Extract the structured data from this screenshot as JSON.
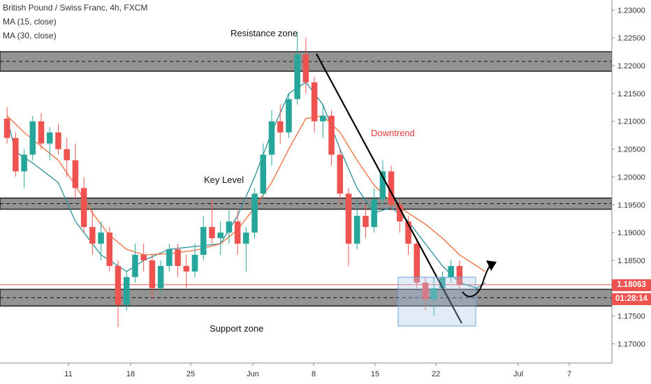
{
  "legend": {
    "title": "British Pound / Swiss Franc, 4h, FXCM",
    "ma15": "MA (15, close)",
    "ma30": "MA (30, close)"
  },
  "annotations": {
    "resistance": "Resistance zone",
    "key_level": "Key Level",
    "support": "Support zone",
    "downtrend": "Downtrend"
  },
  "price_tags": {
    "last": "1.18063",
    "timer": "01:28:14"
  },
  "colors": {
    "up": "#26a69a",
    "down": "#ef5350",
    "ma15": "#2a8f9a",
    "ma30": "#f06a3a",
    "zone": "#808080",
    "box": "#a9c8ea",
    "last_price": "#ef5350",
    "timer": "#ef5350"
  },
  "chart_data": {
    "type": "candlestick",
    "title": "British Pound / Swiss Franc, 4h, FXCM",
    "x_tick_labels": [
      "11",
      "18",
      "25",
      "Jun",
      "8",
      "15",
      "22",
      "Jul",
      "7"
    ],
    "y_tick_labels": [
      "1.23000",
      "1.22500",
      "1.22000",
      "1.21500",
      "1.21000",
      "1.20500",
      "1.20000",
      "1.19500",
      "1.19000",
      "1.18500",
      "1.18000",
      "1.17500",
      "1.17000"
    ],
    "ylim": [
      1.1668,
      1.2318
    ],
    "grid": false,
    "series": [
      {
        "name": "MA (15, close)",
        "approx_path": [
          [
            0,
            1.2105
          ],
          [
            1,
            1.2045
          ],
          [
            3,
            1.2025
          ],
          [
            6,
            1.199
          ],
          [
            8,
            1.192
          ],
          [
            11,
            1.186
          ],
          [
            14,
            1.183
          ],
          [
            16,
            1.185
          ],
          [
            19,
            1.187
          ],
          [
            22,
            1.1875
          ],
          [
            25,
            1.188
          ],
          [
            27,
            1.193
          ],
          [
            29,
            1.2
          ],
          [
            31,
            1.208
          ],
          [
            33,
            1.215
          ],
          [
            35,
            1.217
          ],
          [
            37,
            1.213
          ],
          [
            39,
            1.205
          ],
          [
            41,
            1.198
          ],
          [
            43,
            1.1935
          ],
          [
            45,
            1.1945
          ],
          [
            47,
            1.192
          ],
          [
            49,
            1.188
          ],
          [
            51,
            1.184
          ],
          [
            53,
            1.181
          ],
          [
            55,
            1.18
          ],
          [
            56,
            1.181
          ]
        ]
      },
      {
        "name": "MA (30, close)",
        "approx_path": [
          [
            0,
            1.211
          ],
          [
            2,
            1.208
          ],
          [
            4,
            1.2055
          ],
          [
            6,
            1.203
          ],
          [
            8,
            1.1985
          ],
          [
            10,
            1.1935
          ],
          [
            12,
            1.1895
          ],
          [
            14,
            1.187
          ],
          [
            16,
            1.186
          ],
          [
            19,
            1.1862
          ],
          [
            22,
            1.1868
          ],
          [
            25,
            1.188
          ],
          [
            27,
            1.1905
          ],
          [
            29,
            1.1945
          ],
          [
            31,
            1.199
          ],
          [
            33,
            1.205
          ],
          [
            35,
            1.2105
          ],
          [
            37,
            1.211
          ],
          [
            39,
            1.208
          ],
          [
            41,
            1.203
          ],
          [
            43,
            1.1985
          ],
          [
            45,
            1.1955
          ],
          [
            47,
            1.1935
          ],
          [
            49,
            1.1915
          ],
          [
            51,
            1.189
          ],
          [
            53,
            1.186
          ],
          [
            55,
            1.184
          ],
          [
            56,
            1.183
          ]
        ]
      }
    ],
    "candles": [
      [
        1.2105,
        1.2125,
        1.206,
        1.207
      ],
      [
        1.207,
        1.208,
        1.2,
        1.201
      ],
      [
        1.201,
        1.205,
        1.198,
        1.204
      ],
      [
        1.204,
        1.211,
        1.203,
        1.21
      ],
      [
        1.21,
        1.2115,
        1.205,
        1.206
      ],
      [
        1.206,
        1.209,
        1.203,
        1.208
      ],
      [
        1.208,
        1.2095,
        1.204,
        1.205
      ],
      [
        1.205,
        1.207,
        1.2,
        1.203
      ],
      [
        1.203,
        1.206,
        1.196,
        1.198
      ],
      [
        1.198,
        1.2,
        1.19,
        1.191
      ],
      [
        1.191,
        1.194,
        1.186,
        1.188
      ],
      [
        1.188,
        1.192,
        1.185,
        1.19
      ],
      [
        1.19,
        1.191,
        1.183,
        1.184
      ],
      [
        1.184,
        1.185,
        1.173,
        1.177
      ],
      [
        1.177,
        1.183,
        1.176,
        1.182
      ],
      [
        1.182,
        1.188,
        1.181,
        1.186
      ],
      [
        1.186,
        1.188,
        1.183,
        1.185
      ],
      [
        1.185,
        1.186,
        1.178,
        1.18
      ],
      [
        1.18,
        1.185,
        1.179,
        1.184
      ],
      [
        1.184,
        1.188,
        1.183,
        1.187
      ],
      [
        1.187,
        1.188,
        1.182,
        1.184
      ],
      [
        1.184,
        1.186,
        1.18,
        1.183
      ],
      [
        1.183,
        1.188,
        1.182,
        1.186
      ],
      [
        1.186,
        1.193,
        1.185,
        1.191
      ],
      [
        1.191,
        1.196,
        1.188,
        1.189
      ],
      [
        1.189,
        1.192,
        1.186,
        1.19
      ],
      [
        1.19,
        1.194,
        1.188,
        1.192
      ],
      [
        1.192,
        1.194,
        1.186,
        1.188
      ],
      [
        1.188,
        1.191,
        1.183,
        1.19
      ],
      [
        1.19,
        1.198,
        1.189,
        1.197
      ],
      [
        1.197,
        1.206,
        1.196,
        1.204
      ],
      [
        1.204,
        1.212,
        1.202,
        1.21
      ],
      [
        1.21,
        1.213,
        1.206,
        1.208
      ],
      [
        1.208,
        1.215,
        1.207,
        1.214
      ],
      [
        1.214,
        1.226,
        1.213,
        1.222
      ],
      [
        1.222,
        1.225,
        1.215,
        1.217
      ],
      [
        1.217,
        1.218,
        1.208,
        1.21
      ],
      [
        1.21,
        1.213,
        1.207,
        1.211
      ],
      [
        1.211,
        1.212,
        1.202,
        1.204
      ],
      [
        1.204,
        1.205,
        1.195,
        1.197
      ],
      [
        1.197,
        1.198,
        1.184,
        1.188
      ],
      [
        1.188,
        1.196,
        1.187,
        1.193
      ],
      [
        1.193,
        1.195,
        1.189,
        1.191
      ],
      [
        1.191,
        1.198,
        1.19,
        1.196
      ],
      [
        1.196,
        1.203,
        1.195,
        1.201
      ],
      [
        1.201,
        1.202,
        1.194,
        1.195
      ],
      [
        1.195,
        1.196,
        1.19,
        1.192
      ],
      [
        1.192,
        1.193,
        1.186,
        1.188
      ],
      [
        1.188,
        1.189,
        1.18,
        1.181
      ],
      [
        1.181,
        1.182,
        1.176,
        1.178
      ],
      [
        1.178,
        1.182,
        1.175,
        1.18
      ],
      [
        1.18,
        1.183,
        1.179,
        1.182
      ],
      [
        1.182,
        1.185,
        1.181,
        1.184
      ],
      [
        1.184,
        1.185,
        1.18,
        1.1806
      ]
    ],
    "zones": [
      {
        "name": "Resistance zone",
        "from": 1.219,
        "to": 1.2225
      },
      {
        "name": "Key Level",
        "from": 1.1942,
        "to": 1.1962
      },
      {
        "name": "Support zone",
        "from": 1.1768,
        "to": 1.1798
      }
    ],
    "last_price": 1.18063
  }
}
